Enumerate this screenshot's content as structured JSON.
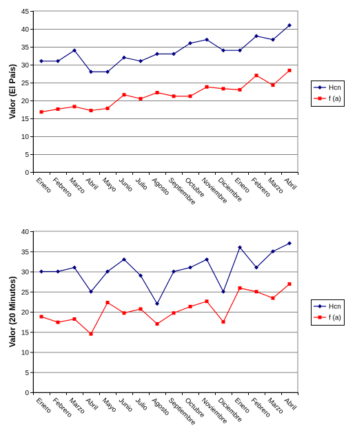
{
  "chart_data": [
    {
      "type": "line",
      "title": "",
      "xlabel": "",
      "ylabel": "Valor (El País)",
      "ylim": [
        0,
        45
      ],
      "ytick_step": 5,
      "grid": "horizontal",
      "legend_position": "right",
      "categories": [
        "Enero",
        "Febrero",
        "Marzo",
        "Abril",
        "Mayo",
        "Junio",
        "Julio",
        "Agosto",
        "Septiembre",
        "Octubre",
        "Noviembre",
        "Diciembre",
        "Enero",
        "Febrero",
        "Marzo",
        "Abril"
      ],
      "series": [
        {
          "name": "Hcn",
          "color": "#000080",
          "marker": "diamond",
          "values": [
            31,
            31,
            34,
            28,
            28,
            32,
            31,
            33,
            33,
            36,
            37,
            34,
            34,
            38,
            37,
            41
          ]
        },
        {
          "name": "f (a)",
          "color": "#ff0000",
          "marker": "square",
          "values": [
            16.8,
            17.6,
            18.3,
            17.2,
            17.8,
            21.6,
            20.5,
            22.2,
            21.2,
            21.2,
            23.8,
            23.3,
            23.0,
            27.0,
            24.3,
            28.4
          ]
        }
      ]
    },
    {
      "type": "line",
      "title": "",
      "xlabel": "",
      "ylabel": "Valor (20 Minutos)",
      "ylim": [
        0,
        40
      ],
      "ytick_step": 5,
      "grid": "horizontal",
      "legend_position": "right",
      "categories": [
        "Enero",
        "Febrero",
        "Marzo",
        "Abril",
        "Mayo",
        "Junio",
        "Julio",
        "Agosto",
        "Septiembre",
        "Octubre",
        "Noviembre",
        "Diciembre",
        "Enero",
        "Febrero",
        "Marzo",
        "Abril"
      ],
      "series": [
        {
          "name": "Hcn",
          "color": "#000080",
          "marker": "diamond",
          "values": [
            30,
            30,
            31,
            25,
            30,
            33,
            29,
            22,
            30,
            31,
            33,
            25,
            36,
            31,
            35,
            37
          ]
        },
        {
          "name": "f (a)",
          "color": "#ff0000",
          "marker": "square",
          "values": [
            18.8,
            17.4,
            18.2,
            14.5,
            22.3,
            19.7,
            20.7,
            17.0,
            19.7,
            21.3,
            22.6,
            17.5,
            25.9,
            25.0,
            23.4,
            26.9
          ]
        }
      ]
    }
  ]
}
